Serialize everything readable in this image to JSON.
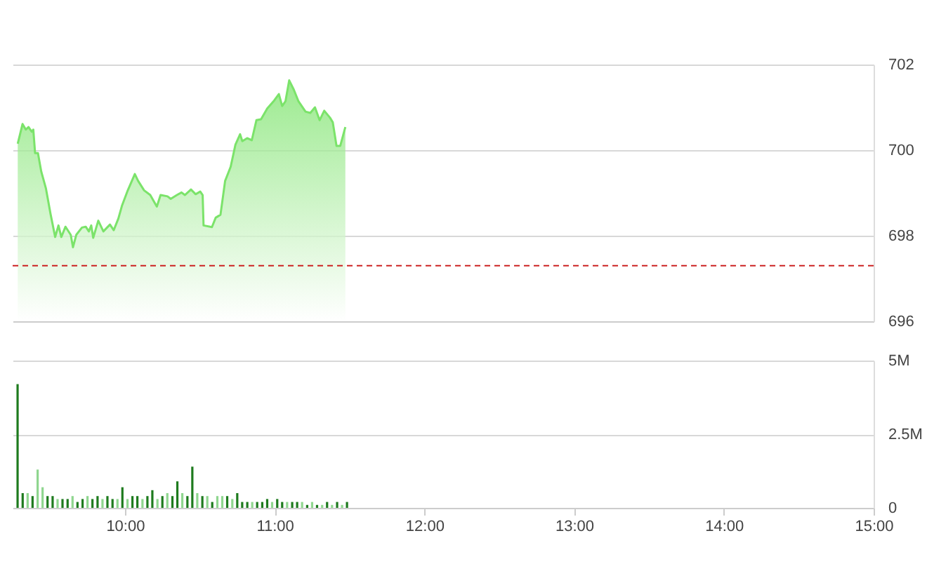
{
  "chart_data": [
    {
      "type": "area",
      "x": [
        9.284,
        9.316,
        9.338,
        9.356,
        9.378,
        9.388,
        9.4,
        9.419,
        9.441,
        9.472,
        9.503,
        9.534,
        9.556,
        9.575,
        9.603,
        9.638,
        9.653,
        9.675,
        9.713,
        9.738,
        9.759,
        9.775,
        9.788,
        9.822,
        9.856,
        9.9,
        9.925,
        9.956,
        9.981,
        10.019,
        10.066,
        10.088,
        10.128,
        10.169,
        10.213,
        10.238,
        10.284,
        10.306,
        10.347,
        10.378,
        10.4,
        10.441,
        10.472,
        10.503,
        10.519,
        10.525,
        10.581,
        10.606,
        10.638,
        10.669,
        10.706,
        10.738,
        10.769,
        10.784,
        10.816,
        10.847,
        10.878,
        10.909,
        10.95,
        10.997,
        11.028,
        11.05,
        11.072,
        11.097,
        11.128,
        11.159,
        11.206,
        11.238,
        11.269,
        11.3,
        11.331,
        11.369,
        11.388,
        11.413,
        11.438,
        11.472
      ],
      "series": [
        {
          "color": "#7be36a",
          "values": [
            700.15,
            700.61,
            700.48,
            700.54,
            700.43,
            700.48,
            699.93,
            699.93,
            699.5,
            699.11,
            698.51,
            697.97,
            698.24,
            697.97,
            698.21,
            698.02,
            697.73,
            698.02,
            698.19,
            698.21,
            698.1,
            698.24,
            697.95,
            698.35,
            698.1,
            698.26,
            698.13,
            698.4,
            698.71,
            699.06,
            699.44,
            699.28,
            699.06,
            698.95,
            698.68,
            698.95,
            698.92,
            698.86,
            698.95,
            699.01,
            698.95,
            699.08,
            698.97,
            699.03,
            698.95,
            698.24,
            698.2,
            698.42,
            698.49,
            699.28,
            699.61,
            700.13,
            700.37,
            700.21,
            700.28,
            700.23,
            700.7,
            700.72,
            700.97,
            701.16,
            701.31,
            701.03,
            701.14,
            701.63,
            701.41,
            701.14,
            700.9,
            700.87,
            701.0,
            700.7,
            700.92,
            700.76,
            700.65,
            700.1,
            700.1,
            700.54
          ]
        }
      ],
      "xlim": [
        9.25,
        15
      ],
      "ylim": [
        696,
        702
      ],
      "yticks": [
        696,
        698,
        700,
        702
      ],
      "grid": "y",
      "tick_labels": "y",
      "ref_lines": [
        {
          "axis": "y",
          "value": 697.3,
          "color": "#cc2222",
          "line_style": "dashed"
        }
      ]
    },
    {
      "type": "bar",
      "x": [
        9.283,
        9.317,
        9.35,
        9.383,
        9.417,
        9.45,
        9.483,
        9.517,
        9.55,
        9.583,
        9.617,
        9.65,
        9.683,
        9.717,
        9.75,
        9.783,
        9.817,
        9.85,
        9.883,
        9.917,
        9.95,
        9.983,
        10.017,
        10.05,
        10.083,
        10.117,
        10.15,
        10.183,
        10.217,
        10.25,
        10.283,
        10.317,
        10.35,
        10.383,
        10.417,
        10.45,
        10.483,
        10.517,
        10.55,
        10.583,
        10.617,
        10.65,
        10.683,
        10.717,
        10.75,
        10.783,
        10.817,
        10.85,
        10.883,
        10.917,
        10.95,
        10.983,
        11.017,
        11.05,
        11.083,
        11.117,
        11.15,
        11.183,
        11.217,
        11.25,
        11.283,
        11.317,
        11.35,
        11.383,
        11.417,
        11.45,
        11.483
      ],
      "values": [
        4.2,
        0.5,
        0.5,
        0.4,
        1.3,
        0.7,
        0.4,
        0.4,
        0.3,
        0.3,
        0.3,
        0.4,
        0.2,
        0.3,
        0.4,
        0.3,
        0.4,
        0.3,
        0.4,
        0.3,
        0.3,
        0.7,
        0.3,
        0.4,
        0.4,
        0.3,
        0.4,
        0.6,
        0.3,
        0.4,
        0.5,
        0.4,
        0.9,
        0.5,
        0.4,
        1.4,
        0.5,
        0.4,
        0.4,
        0.2,
        0.4,
        0.4,
        0.4,
        0.3,
        0.5,
        0.2,
        0.2,
        0.2,
        0.2,
        0.2,
        0.3,
        0.2,
        0.3,
        0.2,
        0.2,
        0.2,
        0.2,
        0.2,
        0.1,
        0.2,
        0.1,
        0.1,
        0.2,
        0.1,
        0.2,
        0.1,
        0.2
      ],
      "colors": [
        "#1e7b1e",
        "#1e7b1e",
        "#8fd68f",
        "#1e7b1e",
        "#8fd68f",
        "#8fd68f",
        "#1e7b1e",
        "#1e7b1e",
        "#8fd68f",
        "#1e7b1e",
        "#1e7b1e",
        "#8fd68f",
        "#1e7b1e",
        "#1e7b1e",
        "#8fd68f",
        "#1e7b1e",
        "#1e7b1e",
        "#8fd68f",
        "#1e7b1e",
        "#1e7b1e",
        "#8fd68f",
        "#1e7b1e",
        "#8fd68f",
        "#1e7b1e",
        "#1e7b1e",
        "#8fd68f",
        "#1e7b1e",
        "#1e7b1e",
        "#8fd68f",
        "#1e7b1e",
        "#8fd68f",
        "#1e7b1e",
        "#1e7b1e",
        "#8fd68f",
        "#1e7b1e",
        "#1e7b1e",
        "#8fd68f",
        "#1e7b1e",
        "#8fd68f",
        "#1e7b1e",
        "#8fd68f",
        "#8fd68f",
        "#1e7b1e",
        "#8fd68f",
        "#1e7b1e",
        "#1e7b1e",
        "#1e7b1e",
        "#8fd68f",
        "#1e7b1e",
        "#1e7b1e",
        "#1e7b1e",
        "#8fd68f",
        "#1e7b1e",
        "#1e7b1e",
        "#8fd68f",
        "#1e7b1e",
        "#1e7b1e",
        "#8fd68f",
        "#1e7b1e",
        "#8fd68f",
        "#1e7b1e",
        "#8fd68f",
        "#1e7b1e",
        "#8fd68f",
        "#1e7b1e",
        "#8fd68f",
        "#1e7b1e"
      ],
      "xlim": [
        9.25,
        15
      ],
      "xticks": [
        {
          "value": 10,
          "label": "10:00"
        },
        {
          "value": 11,
          "label": "11:00"
        },
        {
          "value": 12,
          "label": "12:00"
        },
        {
          "value": 13,
          "label": "13:00"
        },
        {
          "value": 14,
          "label": "14:00"
        },
        {
          "value": 15,
          "label": "15:00"
        }
      ],
      "ylim": [
        0,
        5
      ],
      "yticks": [
        0,
        {
          "value": 2.5,
          "label": "2.5M"
        },
        {
          "value": 5,
          "label": "5M"
        }
      ],
      "grid": "y"
    }
  ]
}
